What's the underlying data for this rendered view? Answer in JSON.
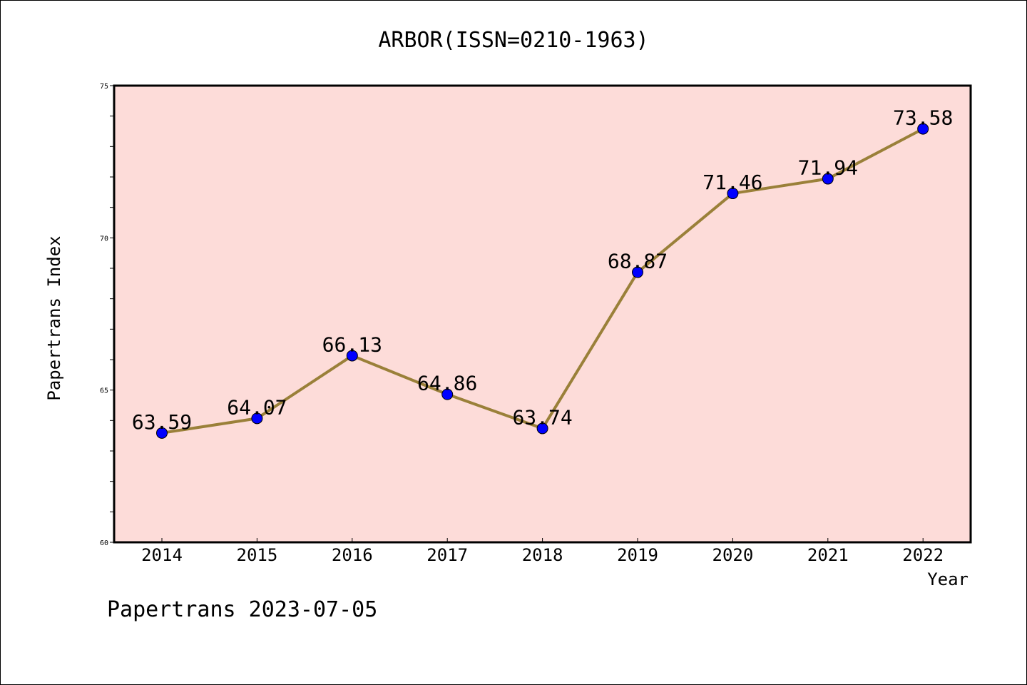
{
  "chart_data": {
    "type": "line",
    "title": "ARBOR(ISSN=0210-1963)",
    "xlabel": "Year",
    "ylabel": "Papertrans Index",
    "categories": [
      "2014",
      "2015",
      "2016",
      "2017",
      "2018",
      "2019",
      "2020",
      "2021",
      "2022"
    ],
    "values": [
      63.59,
      64.07,
      66.13,
      64.86,
      63.74,
      68.87,
      71.46,
      71.94,
      73.58
    ],
    "data_labels": [
      "63.59",
      "64.07",
      "66.13",
      "64.86",
      "63.74",
      "68.87",
      "71.46",
      "71.94",
      "73.58"
    ],
    "ylim": [
      60,
      75
    ],
    "yticks": [
      "60",
      "65",
      "70",
      "75"
    ],
    "grid": false,
    "colors": {
      "plot_background": "#fddcd9",
      "line": "#9a8039",
      "marker": "#0000ff"
    },
    "footer": "Papertrans 2023-07-05"
  }
}
